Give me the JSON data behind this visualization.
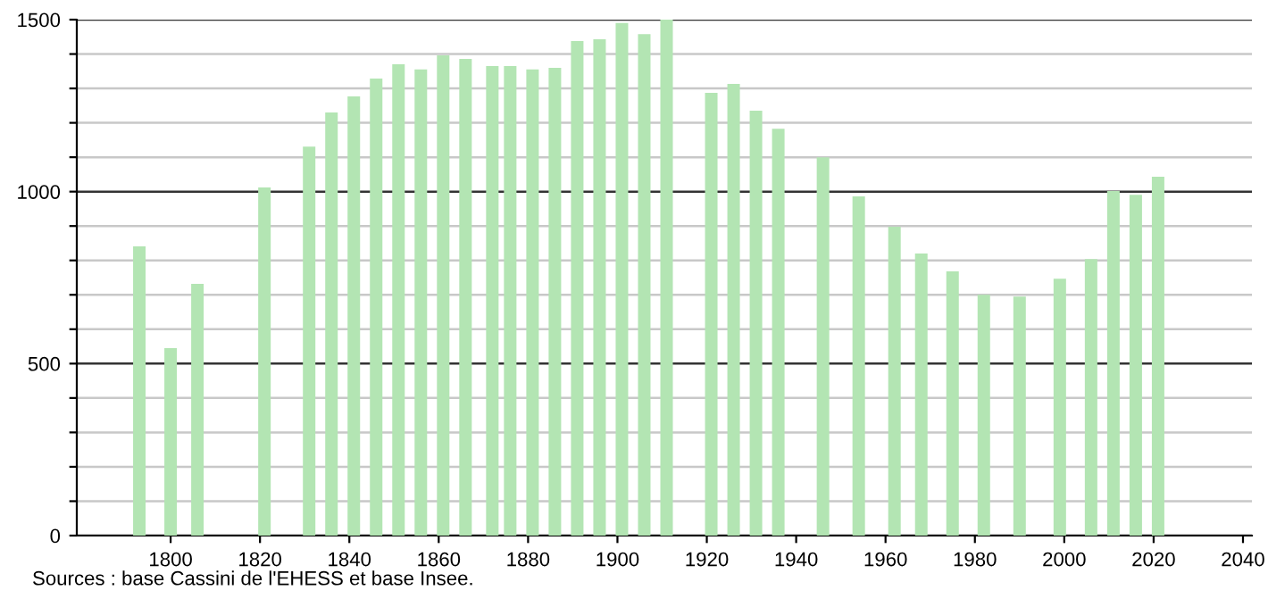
{
  "chart_data": {
    "type": "bar",
    "x": [
      1793,
      1800,
      1806,
      1821,
      1831,
      1836,
      1841,
      1846,
      1851,
      1856,
      1861,
      1866,
      1872,
      1876,
      1881,
      1886,
      1891,
      1896,
      1901,
      1906,
      1911,
      1921,
      1926,
      1931,
      1936,
      1946,
      1954,
      1962,
      1968,
      1975,
      1982,
      1990,
      1999,
      2006,
      2011,
      2016,
      2021
    ],
    "values": [
      841,
      545,
      732,
      1012,
      1131,
      1230,
      1277,
      1329,
      1370,
      1355,
      1396,
      1386,
      1365,
      1365,
      1355,
      1360,
      1438,
      1443,
      1490,
      1458,
      1500,
      1287,
      1313,
      1235,
      1183,
      1100,
      986,
      898,
      820,
      768,
      700,
      695,
      747,
      804,
      1002,
      991,
      1043
    ],
    "color": "#b3e5b3",
    "xlim": [
      1779,
      2042
    ],
    "xticks": [
      1800,
      1820,
      1840,
      1860,
      1880,
      1900,
      1920,
      1940,
      1960,
      1980,
      2000,
      2020,
      2040
    ],
    "ylim": [
      0,
      1500
    ],
    "yticks": [
      0,
      {
        "value": 100,
        "label": null
      },
      {
        "value": 200,
        "label": null
      },
      {
        "value": 300,
        "label": null
      },
      {
        "value": 400,
        "label": null
      },
      500,
      {
        "value": 600,
        "label": null
      },
      {
        "value": 700,
        "label": null
      },
      {
        "value": 800,
        "label": null
      },
      {
        "value": 900,
        "label": null
      },
      1000,
      {
        "value": 1100,
        "label": null
      },
      {
        "value": 1200,
        "label": null
      },
      {
        "value": 1300,
        "label": null
      },
      {
        "value": 1400,
        "label": null
      },
      1500
    ],
    "grid": "y",
    "annotations": [
      "Sources : base Cassini de l'EHESS et base Insee."
    ]
  }
}
